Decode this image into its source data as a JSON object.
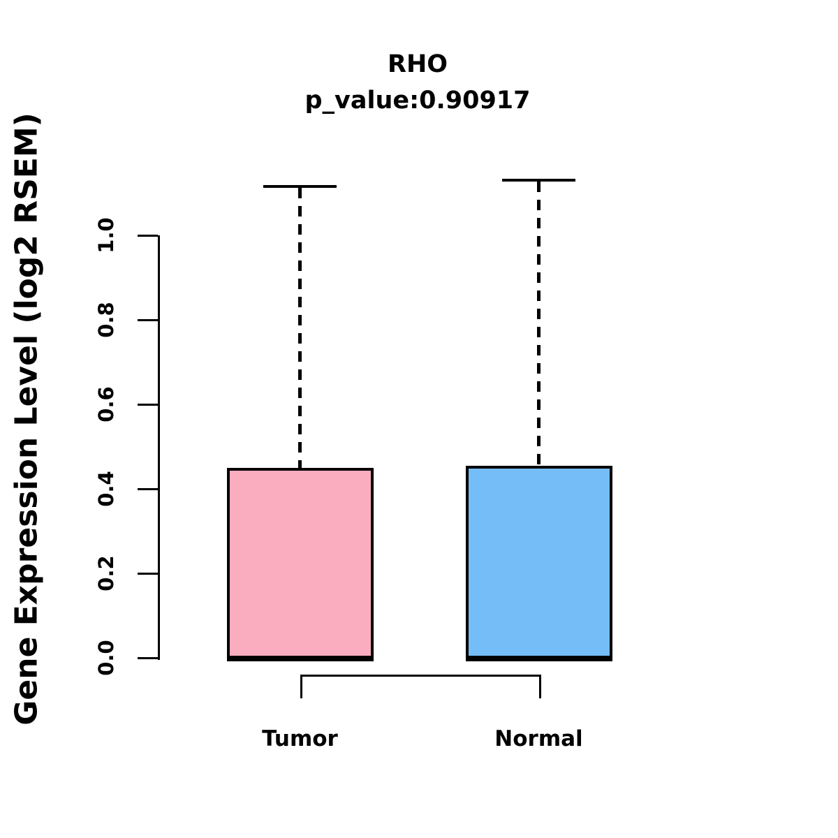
{
  "title": "RHO",
  "subtitle": "p_value:0.90917",
  "y_axis": {
    "label": "Gene Expression Level (log2 RSEM)",
    "tick_labels": [
      "0.0",
      "0.2",
      "0.4",
      "0.6",
      "0.8",
      "1.0"
    ]
  },
  "chart_data": {
    "type": "boxplot",
    "title": "RHO",
    "subtitle": "p_value:0.90917",
    "ylabel": "Gene Expression Level (log2 RSEM)",
    "xlabel": "",
    "categories": [
      "Tumor",
      "Normal"
    ],
    "y_ticks": [
      0.0,
      0.2,
      0.4,
      0.6,
      0.8,
      1.0
    ],
    "ylim": [
      0.0,
      1.0
    ],
    "grid": false,
    "legend": false,
    "text_color": "#000000",
    "axis_color": "#000000",
    "series": [
      {
        "name": "Tumor",
        "fill_color": "#FBADC0",
        "border_color": "#000000",
        "whisker_low": 0.0,
        "q1": 0.0,
        "median": 0.0,
        "q3": 0.45,
        "whisker_high": 1.116,
        "whisker_style": "dashed"
      },
      {
        "name": "Normal",
        "fill_color": "#74BDF7",
        "border_color": "#000000",
        "whisker_low": 0.0,
        "q1": 0.0,
        "median": 0.0,
        "q3": 0.455,
        "whisker_high": 1.131,
        "whisker_style": "dashed"
      }
    ],
    "comparison_bracket": {
      "from": "Tumor",
      "to": "Normal",
      "direction": "below"
    }
  }
}
